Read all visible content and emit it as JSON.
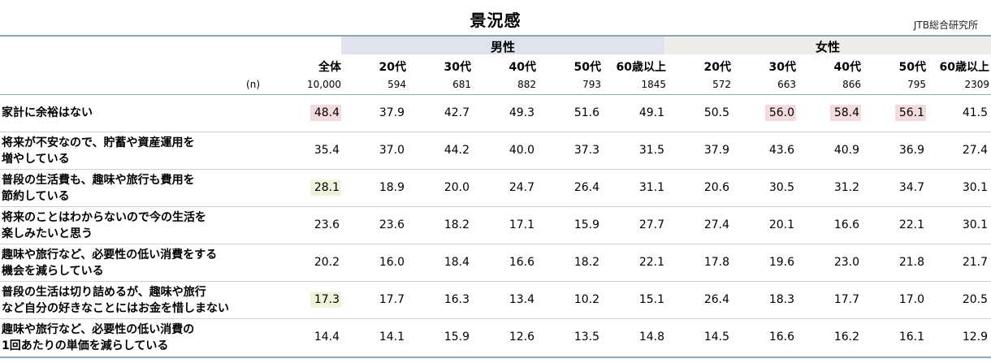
{
  "chart_data": {
    "type": "table",
    "title": "景況感",
    "source": "JTB総合研究所",
    "groups": [
      "男性",
      "女性"
    ],
    "columns": [
      "全体",
      "20代",
      "30代",
      "40代",
      "50代",
      "60歳以上",
      "20代",
      "30代",
      "40代",
      "50代",
      "60歳以上"
    ],
    "n_label": "(n)",
    "n_values": [
      "10,000",
      "594",
      "681",
      "882",
      "793",
      "1845",
      "572",
      "663",
      "866",
      "795",
      "2309"
    ],
    "rows": [
      {
        "label_lines": [
          "家計に余裕はない"
        ],
        "values": [
          "48.4",
          "37.9",
          "42.7",
          "49.3",
          "51.6",
          "49.1",
          "50.5",
          "56.0",
          "58.4",
          "56.1",
          "41.5"
        ]
      },
      {
        "label_lines": [
          "将来が不安なので、貯蓄や資産運用を",
          "増やしている"
        ],
        "values": [
          "35.4",
          "37.0",
          "44.2",
          "40.0",
          "37.3",
          "31.5",
          "37.9",
          "43.6",
          "40.9",
          "36.9",
          "27.4"
        ]
      },
      {
        "label_lines": [
          "普段の生活費も、趣味や旅行も費用を",
          "節約している"
        ],
        "values": [
          "28.1",
          "18.9",
          "20.0",
          "24.7",
          "26.4",
          "31.1",
          "20.6",
          "30.5",
          "31.2",
          "34.7",
          "30.1"
        ]
      },
      {
        "label_lines": [
          "将来のことはわからないので今の生活を",
          "楽しみたいと思う"
        ],
        "values": [
          "23.6",
          "23.6",
          "18.2",
          "17.1",
          "15.9",
          "27.7",
          "27.4",
          "20.1",
          "16.6",
          "22.1",
          "30.1"
        ]
      },
      {
        "label_lines": [
          "趣味や旅行など、必要性の低い消費をする",
          "機会を減らしている"
        ],
        "values": [
          "20.2",
          "16.0",
          "18.4",
          "16.6",
          "18.2",
          "22.1",
          "17.8",
          "19.6",
          "23.0",
          "21.8",
          "21.7"
        ]
      },
      {
        "label_lines": [
          "普段の生活は切り詰めるが、趣味や旅行",
          "など自分の好きなことにはお金を惜しまない"
        ],
        "values": [
          "17.3",
          "17.7",
          "16.3",
          "13.4",
          "10.2",
          "15.1",
          "26.4",
          "18.3",
          "17.7",
          "17.0",
          "20.5"
        ]
      },
      {
        "label_lines": [
          "趣味や旅行など、必要性の低い消費の",
          "1回あたりの単価を減らしている"
        ],
        "values": [
          "14.4",
          "14.1",
          "15.9",
          "12.6",
          "13.5",
          "14.8",
          "14.5",
          "16.6",
          "16.2",
          "16.1",
          "12.9"
        ]
      }
    ],
    "highlights": [
      {
        "row": 0,
        "col": 0,
        "color": "red"
      },
      {
        "row": 0,
        "col": 7,
        "color": "red"
      },
      {
        "row": 0,
        "col": 8,
        "color": "red"
      },
      {
        "row": 0,
        "col": 9,
        "color": "red"
      },
      {
        "row": 2,
        "col": 0,
        "color": "green"
      },
      {
        "row": 5,
        "col": 0,
        "color": "green"
      }
    ],
    "colors": {
      "male_header_bg": "#dfe3ee",
      "female_header_bg": "#ecede8",
      "highlight_red": "#f3dcdc",
      "highlight_green": "#eef3dc",
      "rule": "#8aa6b4"
    }
  }
}
